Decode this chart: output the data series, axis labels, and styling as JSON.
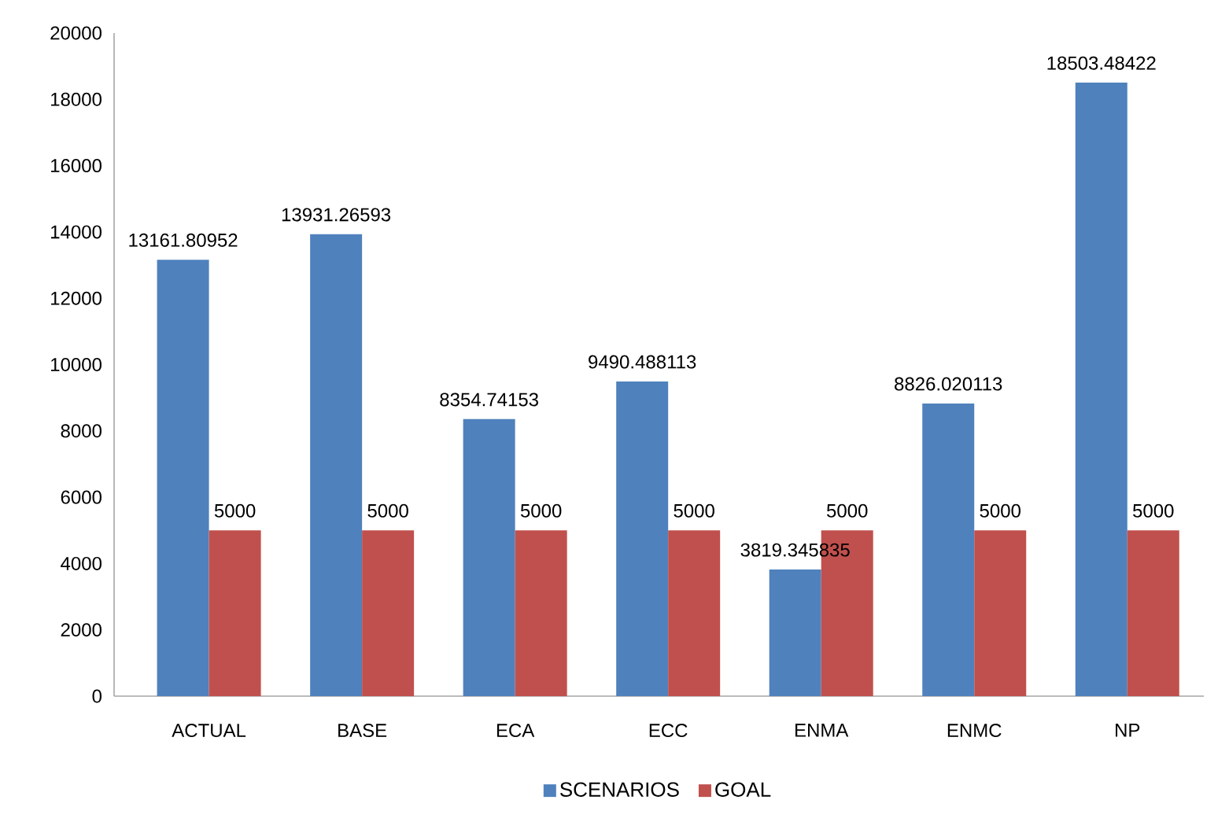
{
  "chart_data": {
    "type": "bar",
    "categories": [
      "ACTUAL",
      "BASE",
      "ECA",
      "ECC",
      "ENMA",
      "ENMC",
      "NP"
    ],
    "series": [
      {
        "name": "SCENARIOS",
        "color": "#4f81bd",
        "values": [
          13161.80952,
          13931.26593,
          8354.74153,
          9490.488113,
          3819.345835,
          8826.020113,
          18503.48422
        ]
      },
      {
        "name": "GOAL",
        "color": "#c0504d",
        "values": [
          5000,
          5000,
          5000,
          5000,
          5000,
          5000,
          5000
        ]
      }
    ],
    "ylim": [
      0,
      20000
    ],
    "yticks": [
      0,
      2000,
      4000,
      6000,
      8000,
      10000,
      12000,
      14000,
      16000,
      18000,
      20000
    ],
    "data_labels": true,
    "legend": "bottom"
  }
}
